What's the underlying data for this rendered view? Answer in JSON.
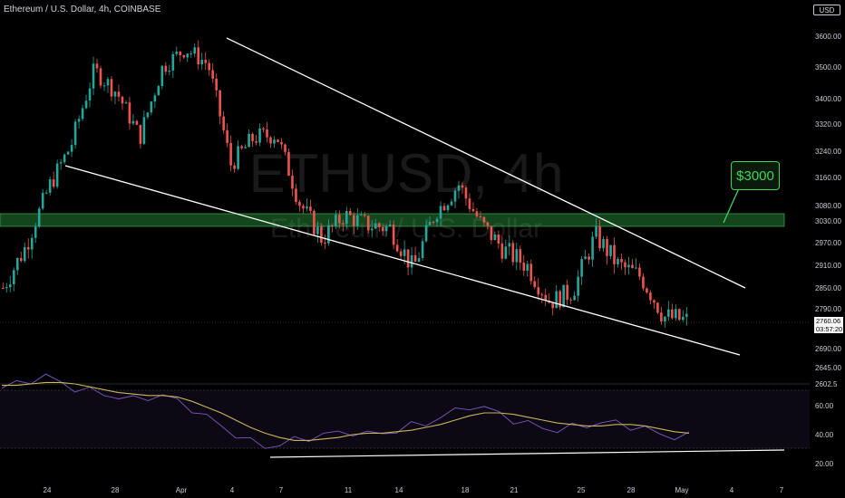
{
  "header": {
    "title": "Ethereum / U.S. Dollar, 4h, COINBASE",
    "currency_badge": "USD"
  },
  "watermark": {
    "symbol": "ETHUSD, 4h",
    "name": "Ethereum / U.S. Dollar"
  },
  "annotation": {
    "callout": "$3000"
  },
  "price_label": {
    "last_price": "2760.06",
    "countdown": "03:57:20"
  },
  "colors": {
    "up": "#26a69a",
    "down": "#ef5350",
    "zone": "#3fd65a",
    "rsi": "#7e57c2",
    "rsi_ma": "#c9b458"
  },
  "chart_data": [
    {
      "type": "candlestick",
      "title": "Ethereum / U.S. Dollar, 4h, COINBASE",
      "y_ticks": [
        3600,
        3500,
        3400,
        3320,
        3240,
        3160,
        3080,
        3030,
        2970,
        2910,
        2850,
        2790,
        2690,
        2645,
        2602.5
      ],
      "x_ticks": [
        "24",
        "28",
        "Apr",
        "4",
        "7",
        "11",
        "14",
        "18",
        "21",
        "25",
        "28",
        "May",
        "4",
        "7"
      ],
      "last_price": 2760.06,
      "support_resistance_zone": [
        3018,
        3058
      ],
      "trendlines": {
        "upper": [
          [
            3600,
            "Apr 3"
          ],
          [
            2860,
            "May 5"
          ]
        ],
        "lower": [
          [
            3170,
            "Mar 23"
          ],
          [
            2680,
            "May 5"
          ]
        ]
      },
      "path_waypoints": [
        2850,
        2960,
        3130,
        3260,
        3490,
        3420,
        3280,
        3500,
        3560,
        3510,
        3200,
        3280,
        3290,
        3090,
        2980,
        3050,
        3020,
        3010,
        2900,
        3060,
        3140,
        3020,
        2950,
        2910,
        2810,
        2840,
        2990,
        2910,
        2880,
        2770,
        2760
      ]
    },
    {
      "type": "line",
      "title": "RSI",
      "y_ticks": [
        60,
        40,
        20
      ],
      "series": [
        {
          "values": [
            72,
            75,
            78,
            80,
            76,
            72,
            70,
            68,
            66,
            64,
            66,
            67,
            63,
            58,
            52,
            46,
            40,
            35,
            32,
            33,
            36,
            38,
            40,
            41,
            42,
            40,
            41,
            43,
            46,
            48,
            52,
            56,
            60,
            58,
            55,
            50,
            47,
            45,
            43,
            45,
            47,
            48,
            48,
            46,
            44,
            40,
            39,
            39
          ]
        },
        {
          "values": [
            74,
            74,
            75,
            76,
            76,
            75,
            73,
            71,
            69,
            68,
            67,
            67,
            66,
            63,
            59,
            55,
            50,
            45,
            41,
            38,
            36,
            36,
            37,
            38,
            40,
            41,
            41,
            42,
            43,
            45,
            47,
            50,
            53,
            55,
            55,
            54,
            52,
            50,
            48,
            47,
            46,
            46,
            47,
            47,
            46,
            44,
            42,
            41
          ]
        }
      ]
    }
  ]
}
